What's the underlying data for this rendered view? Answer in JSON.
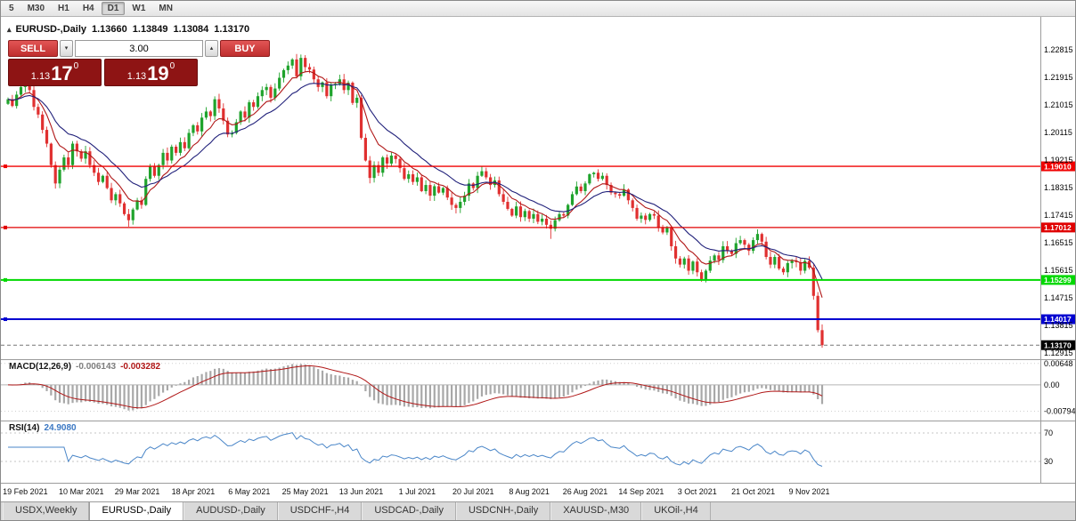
{
  "toolbar": {
    "periods": [
      "5",
      "M30",
      "H1",
      "H4",
      "D1",
      "W1",
      "MN"
    ],
    "active": "D1"
  },
  "chart_header": {
    "symbol": "EURUSD-,Daily",
    "open": "1.13660",
    "high": "1.13849",
    "low": "1.13084",
    "close": "1.13170"
  },
  "icons": {
    "spin_down": "▾",
    "spin_up": "▴",
    "panel_toggle": "▴"
  },
  "trade_panel": {
    "sell": "SELL",
    "buy": "BUY",
    "volume": "3.00",
    "bid": {
      "prefix": "1.13",
      "pips": "17",
      "point": "0"
    },
    "ask": {
      "prefix": "1.13",
      "pips": "19",
      "point": "0"
    }
  },
  "macd_panel": {
    "title": "MACD(12,26,9)",
    "value": "-0.006143",
    "signal": "-0.003282"
  },
  "rsi_panel": {
    "title": "RSI(14)",
    "value": "24.9080"
  },
  "tabs": [
    {
      "label": "USDX,Weekly",
      "active": false
    },
    {
      "label": "EURUSD-,Daily",
      "active": true
    },
    {
      "label": "AUDUSD-,Daily",
      "active": false
    },
    {
      "label": "USDCHF-,H4",
      "active": false
    },
    {
      "label": "USDCAD-,Daily",
      "active": false
    },
    {
      "label": "USDCNH-,Daily",
      "active": false
    },
    {
      "label": "XAUUSD-,M30",
      "active": false
    },
    {
      "label": "UKOil-,H4",
      "active": false
    }
  ],
  "chart_data": {
    "type": "candlestick",
    "symbol": "EURUSD-",
    "timeframe": "Daily",
    "price_axis_ticks": [
      "1.22815",
      "1.21915",
      "1.21015",
      "1.20115",
      "1.19215",
      "1.18315",
      "1.17415",
      "1.16515",
      "1.15615",
      "1.14715",
      "1.13815",
      "1.12915"
    ],
    "date_labels": [
      "19 Feb 2021",
      "10 Mar 2021",
      "29 Mar 2021",
      "18 Apr 2021",
      "6 May 2021",
      "25 May 2021",
      "13 Jun 2021",
      "1 Jul 2021",
      "20 Jul 2021",
      "8 Aug 2021",
      "26 Aug 2021",
      "14 Sep 2021",
      "3 Oct 2021",
      "21 Oct 2021",
      "9 Nov 2021"
    ],
    "label_start_index": 4,
    "label_step": 13,
    "first_open": 1.2105,
    "closes": [
      1.212,
      1.2098,
      1.2135,
      1.216,
      1.2175,
      1.215,
      1.2095,
      1.207,
      1.202,
      1.1975,
      1.1905,
      1.1845,
      1.189,
      1.193,
      1.1905,
      1.1975,
      1.195,
      1.1926,
      1.195,
      1.1905,
      1.188,
      1.185,
      1.187,
      1.183,
      1.179,
      1.181,
      1.178,
      1.1745,
      1.1725,
      1.176,
      1.179,
      1.1775,
      1.186,
      1.19,
      1.187,
      1.1905,
      1.1945,
      1.192,
      1.1965,
      1.1945,
      1.198,
      1.196,
      1.201,
      1.2035,
      1.2015,
      1.206,
      1.208,
      1.2065,
      1.212,
      1.209,
      1.205,
      1.2005,
      1.201,
      1.2045,
      1.208,
      1.206,
      1.211,
      1.2095,
      1.213,
      1.215,
      1.216,
      1.2125,
      1.2155,
      1.219,
      1.2215,
      1.223,
      1.225,
      1.2195,
      1.2255,
      1.2225,
      1.2217,
      1.2185,
      1.216,
      1.2175,
      1.213,
      1.2166,
      1.217,
      1.2185,
      1.215,
      1.2174,
      1.2108,
      1.2125,
      1.1994,
      1.192,
      1.1863,
      1.1905,
      1.188,
      1.193,
      1.191,
      1.1936,
      1.1925,
      1.1895,
      1.186,
      1.1875,
      1.185,
      1.1865,
      1.182,
      1.184,
      1.1805,
      1.1836,
      1.1815,
      1.183,
      1.1799,
      1.1775,
      1.1765,
      1.1785,
      1.1805,
      1.1845,
      1.183,
      1.187,
      1.1885,
      1.1865,
      1.184,
      1.1855,
      1.181,
      1.1785,
      1.1762,
      1.174,
      1.177,
      1.1735,
      1.1755,
      1.173,
      1.1745,
      1.172,
      1.173,
      1.171,
      1.1697,
      1.1725,
      1.1745,
      1.174,
      1.1775,
      1.181,
      1.1835,
      1.182,
      1.1845,
      1.1875,
      1.188,
      1.186,
      1.187,
      1.184,
      1.1815,
      1.181,
      1.1805,
      1.1825,
      1.179,
      1.1765,
      1.173,
      1.174,
      1.1726,
      1.1745,
      1.174,
      1.17,
      1.1685,
      1.17,
      1.164,
      1.16,
      1.158,
      1.16,
      1.156,
      1.159,
      1.1555,
      1.153,
      1.156,
      1.1593,
      1.161,
      1.1595,
      1.164,
      1.1625,
      1.1615,
      1.165,
      1.166,
      1.1645,
      1.1625,
      1.166,
      1.168,
      1.1655,
      1.1605,
      1.158,
      1.1605,
      1.1567,
      1.1555,
      1.1585,
      1.1592,
      1.1588,
      1.156,
      1.1592,
      1.157,
      1.1478,
      1.1366,
      1.1317
    ],
    "wick_overrides": {
      "4": {
        "high": 1.2243
      },
      "28": {
        "low": 1.1704
      },
      "68": {
        "high": 1.2266
      },
      "126": {
        "low": 1.1664
      },
      "161": {
        "low": 1.1524
      },
      "189": {
        "high": 1.13849,
        "low": 1.13084
      }
    },
    "candle_colors": {
      "up": "#1fa32c",
      "down": "#e03030"
    },
    "moving_averages": [
      {
        "period": 8,
        "color": "#b01717"
      },
      {
        "period": 17,
        "color": "#20207a"
      }
    ],
    "levels": [
      {
        "price": 1.1901,
        "label": "1.19010",
        "color": "#f00000",
        "thickness": 1.3
      },
      {
        "price": 1.17012,
        "label": "1.17012",
        "color": "#e00000",
        "thickness": 1.3
      },
      {
        "price": 1.15299,
        "label": "1.15299",
        "color": "#00d800",
        "thickness": 2
      },
      {
        "price": 1.14017,
        "label": "1.14017",
        "color": "#0000d0",
        "thickness": 2
      }
    ],
    "current_price": {
      "price": 1.1317,
      "label": "1.13170",
      "color": "#000000"
    },
    "macd": {
      "fast": 12,
      "slow": 26,
      "signal_period": 9,
      "value": -0.006143,
      "signal_value": -0.003282,
      "range": [
        0.0075,
        -0.0105
      ],
      "ticks": [
        {
          "v": 0.00648,
          "label": "0.00648"
        },
        {
          "v": 0,
          "label": "0.00"
        },
        {
          "v": -0.00794,
          "label": "-0.00794"
        }
      ],
      "hist_color": "#a8a8a8",
      "signal_color": "#b01717"
    },
    "rsi": {
      "period": 14,
      "value": 24.908,
      "range": [
        85,
        0
      ],
      "levels": [
        70,
        30
      ],
      "tick_labels": [
        "70",
        "30"
      ],
      "color": "#4a86c8"
    }
  }
}
